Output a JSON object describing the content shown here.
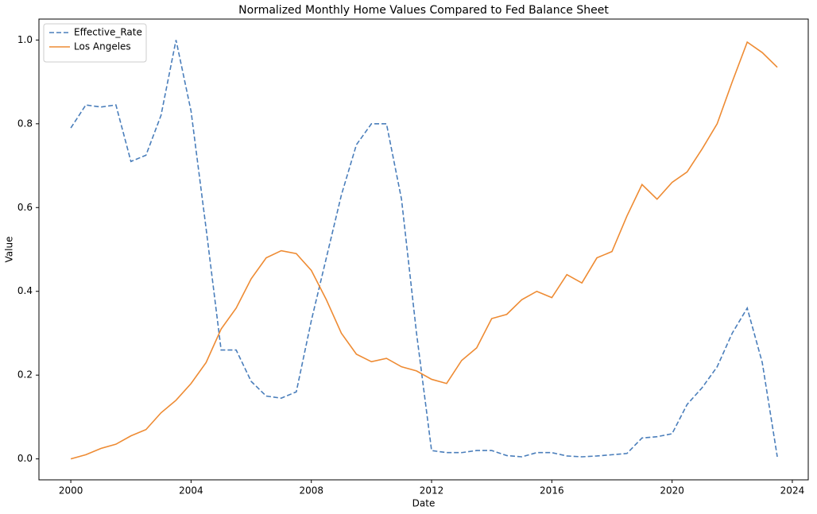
{
  "chart_data": {
    "type": "line",
    "title": "Normalized Monthly Home Values Compared to Fed Balance Sheet",
    "xlabel": "Date",
    "ylabel": "Value",
    "x": [
      2000,
      2000.5,
      2001,
      2001.5,
      2002,
      2002.5,
      2003,
      2003.5,
      2004,
      2004.5,
      2005,
      2005.5,
      2006,
      2006.5,
      2007,
      2007.5,
      2008,
      2008.5,
      2009,
      2009.5,
      2010,
      2010.5,
      2011,
      2011.5,
      2012,
      2012.5,
      2013,
      2013.5,
      2014,
      2014.5,
      2015,
      2015.5,
      2016,
      2016.5,
      2017,
      2017.5,
      2018,
      2018.5,
      2019,
      2019.5,
      2020,
      2020.5,
      2021,
      2021.5,
      2022,
      2022.5,
      2023,
      2023.5
    ],
    "series": [
      {
        "name": "Effective_Rate",
        "color": "#4a7ebb",
        "dashed": true,
        "values": [
          0.79,
          0.845,
          0.84,
          0.845,
          0.71,
          0.725,
          0.82,
          1.0,
          0.83,
          0.55,
          0.26,
          0.26,
          0.185,
          0.15,
          0.145,
          0.16,
          0.33,
          0.48,
          0.63,
          0.75,
          0.8,
          0.8,
          0.62,
          0.3,
          0.02,
          0.015,
          0.015,
          0.02,
          0.02,
          0.008,
          0.005,
          0.015,
          0.015,
          0.007,
          0.005,
          0.007,
          0.01,
          0.013,
          0.05,
          0.053,
          0.06,
          0.13,
          0.17,
          0.22,
          0.3,
          0.36,
          0.23,
          0.005
        ]
      },
      {
        "name": "Los Angeles",
        "color": "#ee8b33",
        "dashed": false,
        "values": [
          0.0,
          0.01,
          0.025,
          0.035,
          0.055,
          0.07,
          0.11,
          0.14,
          0.18,
          0.23,
          0.31,
          0.36,
          0.43,
          0.48,
          0.497,
          0.49,
          0.45,
          0.38,
          0.3,
          0.25,
          0.232,
          0.24,
          0.22,
          0.21,
          0.19,
          0.18,
          0.235,
          0.265,
          0.335,
          0.345,
          0.38,
          0.4,
          0.385,
          0.44,
          0.42,
          0.48,
          0.495,
          0.58,
          0.655,
          0.62,
          0.66,
          0.685,
          0.74,
          0.8,
          0.9,
          0.995,
          0.97,
          0.935
        ]
      }
    ],
    "xlim": [
      1998.94,
      2024.53
    ],
    "ylim": [
      -0.05,
      1.05
    ],
    "xticks": [
      2000,
      2004,
      2008,
      2012,
      2016,
      2020,
      2024
    ],
    "yticks": [
      {
        "value": 0,
        "label": "0.0"
      },
      0.2,
      0.4,
      0.6,
      0.8,
      {
        "value": 1,
        "label": "1.0"
      }
    ],
    "grid": false,
    "legend": "upper left"
  }
}
